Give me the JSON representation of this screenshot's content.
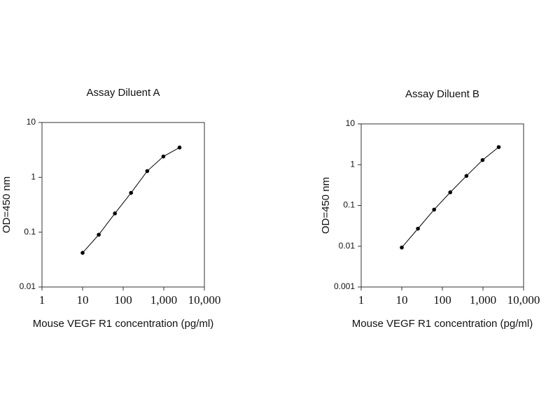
{
  "chart_data": [
    {
      "type": "line",
      "title": "Assay Diluent A",
      "x_label": "Mouse VEGF R1 concentration (pg/ml)",
      "y_label": "OD=450 nm",
      "xscale": "log",
      "yscale": "log",
      "color": "#000000",
      "x": [
        10,
        25,
        62.5,
        156,
        391,
        977,
        2441
      ],
      "values": [
        0.042,
        0.09,
        0.22,
        0.52,
        1.3,
        2.4,
        3.5
      ],
      "xlim": [
        1,
        10000
      ],
      "xticks": [
        1,
        10,
        100,
        {
          "value": 1000,
          "label": "1,000"
        },
        {
          "value": 10000,
          "label": "10,000"
        }
      ],
      "ylim": [
        0.01,
        10
      ],
      "yticks": [
        0.01,
        0.1,
        1,
        10
      ]
    },
    {
      "type": "line",
      "title": "Assay Diluent B",
      "x_label": "Mouse VEGF R1 concentration (pg/ml)",
      "y_label": "OD=450 nm",
      "xscale": "log",
      "yscale": "log",
      "color": "#000000",
      "x": [
        10,
        25,
        62.5,
        156,
        391,
        977,
        2441
      ],
      "values": [
        0.0093,
        0.027,
        0.079,
        0.21,
        0.53,
        1.3,
        2.7
      ],
      "xlim": [
        1,
        10000
      ],
      "xticks": [
        1,
        10,
        100,
        {
          "value": 1000,
          "label": "1,000"
        },
        {
          "value": 10000,
          "label": "10,000"
        }
      ],
      "ylim": [
        0.001,
        10
      ],
      "yticks": [
        0.001,
        0.01,
        0.1,
        1,
        10
      ]
    }
  ]
}
